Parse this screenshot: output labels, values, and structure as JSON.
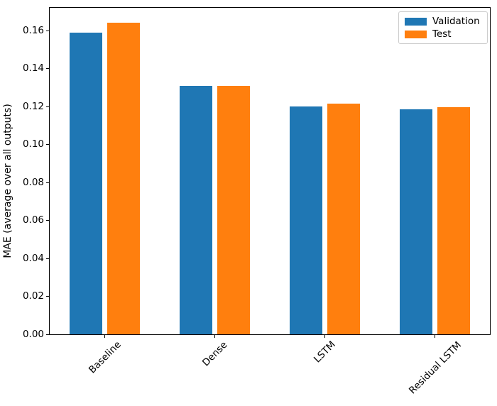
{
  "chart_data": {
    "type": "bar",
    "title": "",
    "xlabel": "",
    "ylabel": "MAE (average over all outputs)",
    "categories": [
      "Baseline",
      "Dense",
      "LSTM",
      "Residual LSTM"
    ],
    "series": [
      {
        "name": "Validation",
        "color": "#1f77b4",
        "values": [
          0.159,
          0.131,
          0.12,
          0.1185
        ]
      },
      {
        "name": "Test",
        "color": "#ff7f0e",
        "values": [
          0.164,
          0.131,
          0.1215,
          0.1195
        ]
      }
    ],
    "ylim": [
      0,
      0.172
    ],
    "yticks": [
      0.0,
      0.02,
      0.04,
      0.06,
      0.08,
      0.1,
      0.12,
      0.14,
      0.16
    ],
    "ytick_labels": [
      "0.00",
      "0.02",
      "0.04",
      "0.06",
      "0.08",
      "0.10",
      "0.12",
      "0.14",
      "0.16"
    ],
    "xtick_rotation": 45,
    "grid": false,
    "legend": {
      "position": "upper right",
      "entries": [
        "Validation",
        "Test"
      ]
    },
    "bar_width": 0.3,
    "bar_offsets": [
      -0.17,
      0.17
    ]
  }
}
